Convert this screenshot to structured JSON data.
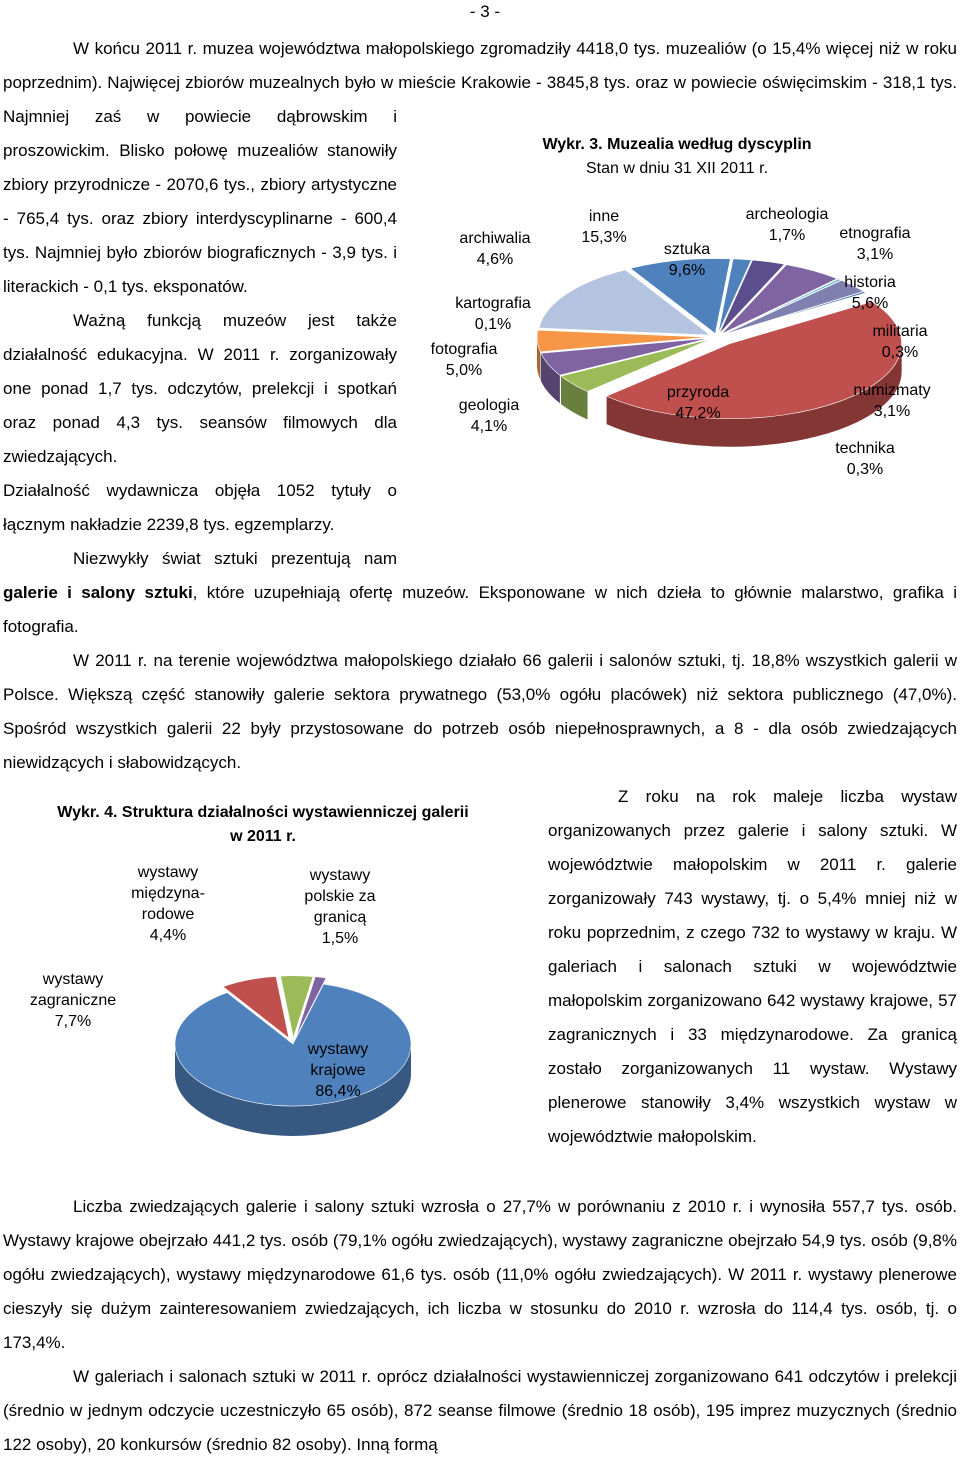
{
  "page_number": "- 3 -",
  "paragraphs": [
    [
      "W końcu 2011 r. muzea województwa małopolskiego zgromadziły 4418,0 tys. muzealiów (o 15,4% więcej niż w roku poprzednim). Najwięcej zbiorów muzealnych było w mieście Krakowie - 3845,8 tys. oraz w powiecie oświęcimskim - 318,1 tys. Najmniej zaś w powiecie dąbrowskim i proszowickim. Blisko połowę muzealiów stanowiły zbiory przyrodnicze - 2070,6 tys., zbiory artystyczne - 765,4 tys. oraz zbiory interdyscyplinarne - 600,4 tys. Najmniej było zbiorów biograficznych - 3,9 tys. i literackich - 0,1 tys. eksponatów."
    ],
    [
      "Ważną funkcją muzeów jest także działalność edukacyjna. W 2011 r. zorganizowały one ponad 1,7 tys. odczytów, prelekcji i spotkań oraz ponad 4,3 tys. seansów filmowych dla zwiedzających."
    ],
    [
      "Działalność wydawnicza objęła 1052 tytuły o łącznym nakładzie 2239,8 tys. egzemplarzy."
    ],
    [
      "Niezwykły świat sztuki prezentują nam ",
      "galerie i salony sztuki",
      ", które uzupełniają ofertę muzeów. Eksponowane w nich dzieła to głównie malarstwo, grafika i fotografia."
    ],
    [
      "W 2011 r. na terenie województwa małopolskiego działało 66 galerii i salonów sztuki, tj. 18,8% wszystkich galerii w Polsce. Większą część stanowiły galerie sektora prywatnego (53,0% ogółu placówek) niż sektora publicznego (47,0%). Spośród wszystkich galerii 22 były przystosowane do potrzeb osób niepełnosprawnych, a 8 - dla osób zwiedzających niewidzących i słabowidzących."
    ],
    [
      "Z roku na rok maleje liczba wystaw organizowanych przez galerie i salony sztuki. W województwie małopolskim w 2011 r. galerie zorganizowały 743 wystawy, tj. o 5,4% mniej niż w roku poprzednim, z czego 732 to wystawy w kraju. W galeriach i salonach sztuki w województwie małopolskim zorganizowano 642 wystawy krajowe, 57 zagranicznych i 33 międzynarodowe. Za granicą zostało zorganizowanych 11 wystaw. Wystawy plenerowe stanowiły 3,4% wszystkich wystaw w województwie małopolskim."
    ],
    [
      "Liczba zwiedzających galerie i salony sztuki wzrosła o 27,7% w porównaniu z 2010 r. i wynosiła 557,7 tys. osób. Wystawy krajowe obejrzało 441,2 tys. osób (79,1% ogółu zwiedzających), wystawy zagraniczne obejrzało 54,9 tys. osób (9,8% ogółu zwiedzających), wystawy międzynarodowe 61,6 tys. osób (11,0% ogółu zwiedzających). W 2011 r. wystawy plenerowe cieszyły się dużym zainteresowaniem zwiedzających, ich liczba w stosunku do 2010 r. wzrosła do 114,4 tys. osób, tj. o 173,4%."
    ],
    [
      "W galeriach i salonach sztuki w 2011 r. oprócz działalności wystawienniczej zorganizowano 641 odczytów i prelekcji (średnio w jednym odczycie uczestniczyło 65 osób), 872 seanse filmowe (średnio 18 osób), 195 imprez muzycznych (średnio 122 osoby), 20 konkursów (średnio 82 osoby). Inną formą"
    ]
  ],
  "chart_data": [
    {
      "type": "pie",
      "title": "Wykr. 3. Muzealia według dyscyplin",
      "subtitle": "Stan w dniu 31 XII 2011 r.",
      "categories": [
        "archeologia",
        "etnografia",
        "historia",
        "militaria",
        "numizmaty",
        "technika",
        "przyroda",
        "geologia",
        "fotografia",
        "kartografia",
        "archiwalia",
        "inne",
        "sztuka"
      ],
      "values": [
        1.7,
        3.1,
        5.6,
        0.3,
        3.1,
        0.3,
        47.2,
        4.1,
        5.0,
        0.1,
        4.6,
        15.3,
        9.6
      ],
      "value_labels": [
        "1,7%",
        "3,1%",
        "5,6%",
        "0,3%",
        "3,1%",
        "0,3%",
        "47,2%",
        "4,1%",
        "5,0%",
        "0,1%",
        "4,6%",
        "15,3%",
        "9,6%"
      ],
      "colors": [
        "#4f81bd",
        "#5a4f8c",
        "#8064a2",
        "#4bacc6",
        "#7f7fb0",
        "#3d6a9e",
        "#c0504d",
        "#9bbb59",
        "#8064a2",
        "#4bacc6",
        "#f79646",
        "#b4c4e0",
        "#4f81bd"
      ]
    },
    {
      "type": "pie",
      "title": "Wykr. 4. Struktura działalności wystawienniczej galerii w 2011 r.",
      "categories": [
        "wystawy krajowe",
        "wystawy zagraniczne",
        "wystawy międzyna-rodowe",
        "wystawy polskie za granicą"
      ],
      "values": [
        86.4,
        7.7,
        4.4,
        1.5
      ],
      "value_labels": [
        "86,4%",
        "7,7%",
        "4,4%",
        "1,5%"
      ],
      "colors": [
        "#4f81bd",
        "#c0504d",
        "#9bbb59",
        "#8064a2"
      ]
    }
  ]
}
